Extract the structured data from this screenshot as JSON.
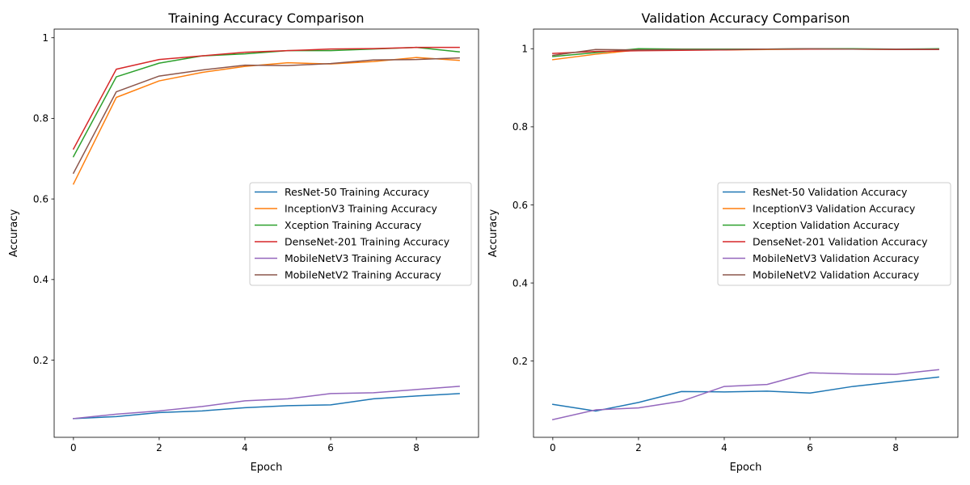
{
  "chart_data": [
    {
      "type": "line",
      "title": "Training Accuracy Comparison",
      "xlabel": "Epoch",
      "ylabel": "Accuracy",
      "xlim": [
        -0.45,
        9.45
      ],
      "ylim": [
        0.0085,
        1.0215
      ],
      "xticks": [
        0,
        2,
        4,
        6,
        8
      ],
      "yticks": [
        0.2,
        0.4,
        0.6,
        0.8,
        1.0
      ],
      "grid": false,
      "legend_position": "center-right",
      "x": [
        0,
        1,
        2,
        3,
        4,
        5,
        6,
        7,
        8,
        9
      ],
      "series": [
        {
          "name": "ResNet-50 Training Accuracy",
          "color": "#1f77b4",
          "values": [
            0.055,
            0.06,
            0.07,
            0.074,
            0.082,
            0.087,
            0.089,
            0.104,
            0.111,
            0.117
          ]
        },
        {
          "name": "InceptionV3 Training Accuracy",
          "color": "#ff7f0e",
          "values": [
            0.637,
            0.852,
            0.893,
            0.914,
            0.929,
            0.938,
            0.935,
            0.941,
            0.951,
            0.944
          ]
        },
        {
          "name": "Xception Training Accuracy",
          "color": "#2ca02c",
          "values": [
            0.705,
            0.903,
            0.937,
            0.955,
            0.96,
            0.968,
            0.968,
            0.972,
            0.976,
            0.965
          ]
        },
        {
          "name": "DenseNet-201 Training Accuracy",
          "color": "#d62728",
          "values": [
            0.724,
            0.922,
            0.946,
            0.955,
            0.964,
            0.968,
            0.972,
            0.973,
            0.976,
            0.976
          ]
        },
        {
          "name": "MobileNetV3 Training Accuracy",
          "color": "#9467bd",
          "values": [
            0.055,
            0.066,
            0.074,
            0.085,
            0.099,
            0.104,
            0.117,
            0.119,
            0.127,
            0.135
          ]
        },
        {
          "name": "MobileNetV2 Training Accuracy",
          "color": "#8c564b",
          "values": [
            0.664,
            0.866,
            0.905,
            0.92,
            0.932,
            0.931,
            0.936,
            0.945,
            0.946,
            0.95
          ]
        }
      ]
    },
    {
      "type": "line",
      "title": "Validation Accuracy Comparison",
      "xlabel": "Epoch",
      "ylabel": "Accuracy",
      "xlim": [
        -0.45,
        9.45
      ],
      "ylim": [
        0.0047,
        1.0503
      ],
      "xticks": [
        0,
        2,
        4,
        6,
        8
      ],
      "yticks": [
        0.2,
        0.4,
        0.6,
        0.8,
        1.0
      ],
      "grid": false,
      "legend_position": "center-right",
      "x": [
        0,
        1,
        2,
        3,
        4,
        5,
        6,
        7,
        8,
        9
      ],
      "series": [
        {
          "name": "ResNet-50 Validation Accuracy",
          "color": "#1f77b4",
          "values": [
            0.089,
            0.072,
            0.094,
            0.122,
            0.121,
            0.123,
            0.118,
            0.135,
            0.147,
            0.159
          ]
        },
        {
          "name": "InceptionV3 Validation Accuracy",
          "color": "#ff7f0e",
          "values": [
            0.972,
            0.986,
            0.997,
            0.997,
            0.997,
            0.998,
            0.999,
            0.999,
            0.998,
            0.999
          ]
        },
        {
          "name": "Xception Validation Accuracy",
          "color": "#2ca02c",
          "values": [
            0.98,
            0.99,
            1.0,
            0.999,
            0.999,
            0.999,
            1.0,
            1.0,
            0.999,
            1.0
          ]
        },
        {
          "name": "DenseNet-201 Validation Accuracy",
          "color": "#d62728",
          "values": [
            0.988,
            0.993,
            0.995,
            0.996,
            0.997,
            0.999,
            0.999,
            0.999,
            0.998,
            0.998
          ]
        },
        {
          "name": "MobileNetV3 Validation Accuracy",
          "color": "#9467bd",
          "values": [
            0.05,
            0.075,
            0.08,
            0.097,
            0.135,
            0.14,
            0.17,
            0.167,
            0.166,
            0.178
          ]
        },
        {
          "name": "MobileNetV2 Validation Accuracy",
          "color": "#8c564b",
          "values": [
            0.983,
            0.998,
            0.997,
            0.998,
            0.998,
            0.999,
            1.0,
            0.999,
            0.999,
            0.999
          ]
        }
      ]
    }
  ]
}
